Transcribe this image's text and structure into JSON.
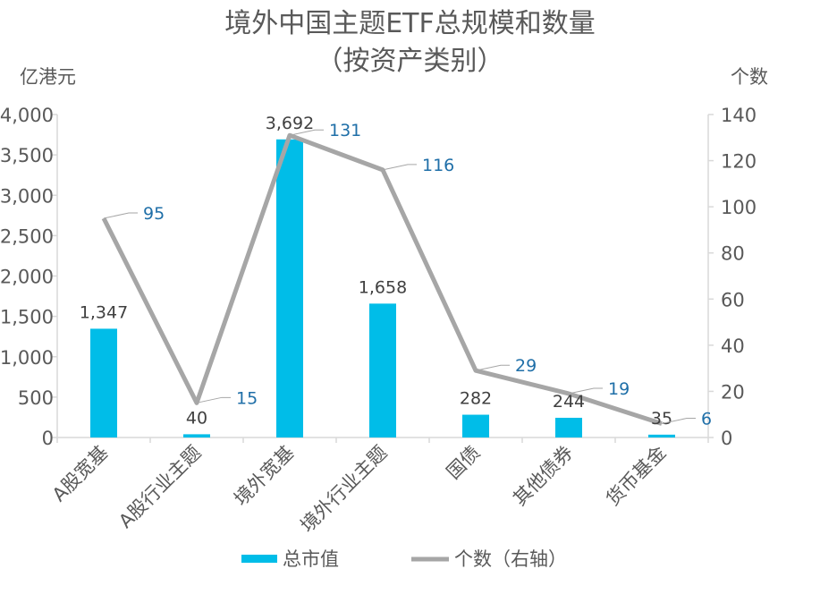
{
  "chart_data": {
    "type": "bar",
    "title": "境外中国主题ETF总规模和数量",
    "subtitle": "（按资产类别）",
    "y_left_unit": "亿港元",
    "y_right_unit": "个数",
    "categories": [
      "A股宽基",
      "A股行业主题",
      "境外宽基",
      "境外行业主题",
      "国债",
      "其他债券",
      "货币基金"
    ],
    "series": [
      {
        "name": "总市值",
        "kind": "bar",
        "axis": "left",
        "color": "#00bde8",
        "values": [
          1347,
          40,
          3692,
          1658,
          282,
          244,
          35
        ],
        "labels": [
          "1,347",
          "40",
          "3,692",
          "1,658",
          "282",
          "244",
          "35"
        ]
      },
      {
        "name": "个数（右轴）",
        "kind": "line",
        "axis": "right",
        "color": "#a6a6a6",
        "values": [
          95,
          15,
          131,
          116,
          29,
          19,
          6
        ],
        "labels": [
          "95",
          "15",
          "131",
          "116",
          "29",
          "19",
          "6"
        ]
      }
    ],
    "y_left": {
      "min": 0,
      "max": 4000,
      "ticks": [
        "0",
        "500",
        "1,000",
        "1,500",
        "2,000",
        "2,500",
        "3,000",
        "3,500",
        "4,000"
      ]
    },
    "y_right": {
      "min": 0,
      "max": 140,
      "ticks": [
        "0",
        "20",
        "40",
        "60",
        "80",
        "100",
        "120",
        "140"
      ]
    },
    "grid": false,
    "legend_position": "bottom"
  }
}
